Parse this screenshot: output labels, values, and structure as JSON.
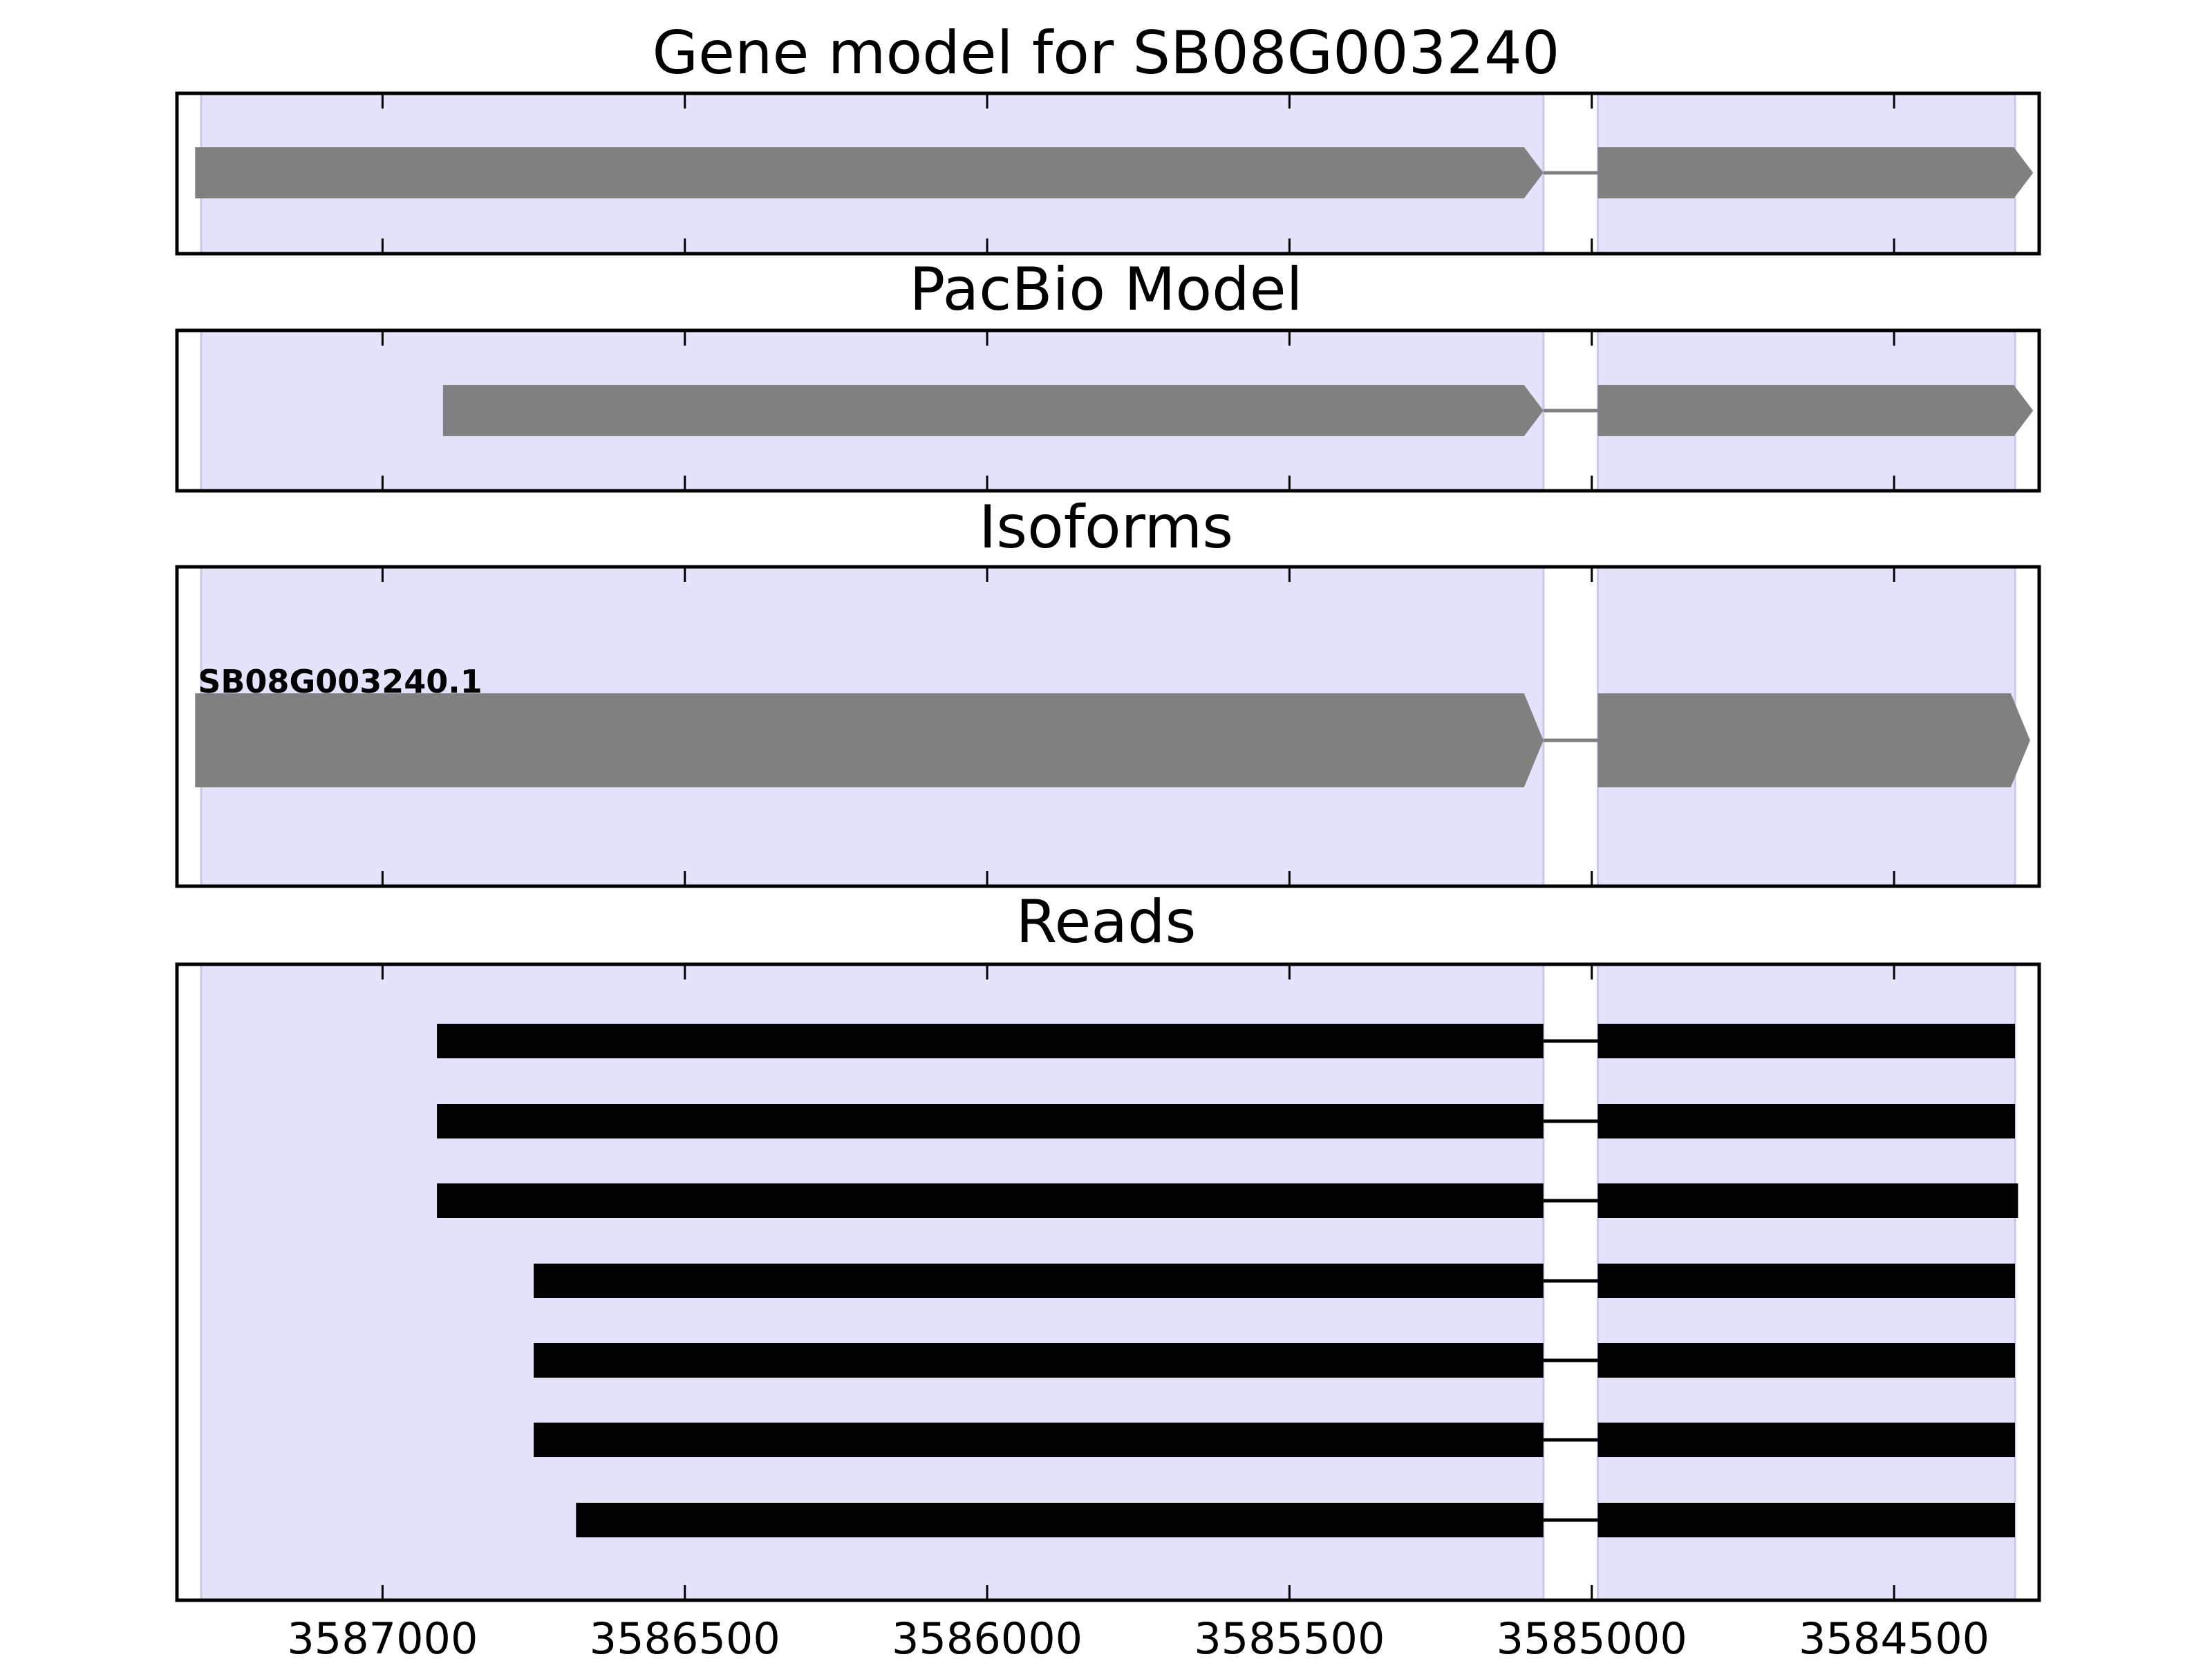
{
  "chart_data": {
    "type": "gene-structure",
    "x_axis": {
      "range": [
        3587340,
        3584260
      ],
      "ticks": [
        3587000,
        3586500,
        3586000,
        3585500,
        3585000,
        3584500
      ],
      "tick_labels": [
        "3587000",
        "3586500",
        "3586000",
        "3585500",
        "3585000",
        "3584500"
      ]
    },
    "exon_regions": [
      [
        3587300,
        3585080
      ],
      [
        3584990,
        3584300
      ]
    ],
    "colors": {
      "region": "#e3e3fb",
      "region_edge": "#c8c8ee",
      "gene_feature": "#808080",
      "read": "#000000",
      "frame": "#000000"
    },
    "panels": [
      {
        "title": "Gene model for SB08G003240",
        "features": [
          {
            "exons": [
              [
                3587310,
                3585080
              ],
              [
                3584990,
                3584270
              ]
            ],
            "style": "arrow",
            "color": "gray"
          }
        ]
      },
      {
        "title": "PacBio Model",
        "features": [
          {
            "exons": [
              [
                3586900,
                3585080
              ],
              [
                3584990,
                3584270
              ]
            ],
            "style": "arrow",
            "color": "gray"
          }
        ]
      },
      {
        "title": "Isoforms",
        "features": [
          {
            "label": "SB08G003240.1",
            "exons": [
              [
                3587310,
                3585080
              ],
              [
                3584990,
                3584275
              ]
            ],
            "style": "arrow",
            "color": "gray"
          }
        ]
      },
      {
        "title": "Reads",
        "features": [
          {
            "exons": [
              [
                3586910,
                3585080
              ],
              [
                3584990,
                3584300
              ]
            ],
            "style": "bar",
            "color": "black"
          },
          {
            "exons": [
              [
                3586910,
                3585080
              ],
              [
                3584990,
                3584300
              ]
            ],
            "style": "bar",
            "color": "black"
          },
          {
            "exons": [
              [
                3586910,
                3585080
              ],
              [
                3584990,
                3584295
              ]
            ],
            "style": "bar",
            "color": "black"
          },
          {
            "exons": [
              [
                3586750,
                3585080
              ],
              [
                3584990,
                3584300
              ]
            ],
            "style": "bar",
            "color": "black"
          },
          {
            "exons": [
              [
                3586750,
                3585080
              ],
              [
                3584990,
                3584300
              ]
            ],
            "style": "bar",
            "color": "black"
          },
          {
            "exons": [
              [
                3586750,
                3585080
              ],
              [
                3584990,
                3584300
              ]
            ],
            "style": "bar",
            "color": "black"
          },
          {
            "exons": [
              [
                3586680,
                3585080
              ],
              [
                3584990,
                3584300
              ]
            ],
            "style": "bar",
            "color": "black"
          }
        ]
      }
    ]
  }
}
